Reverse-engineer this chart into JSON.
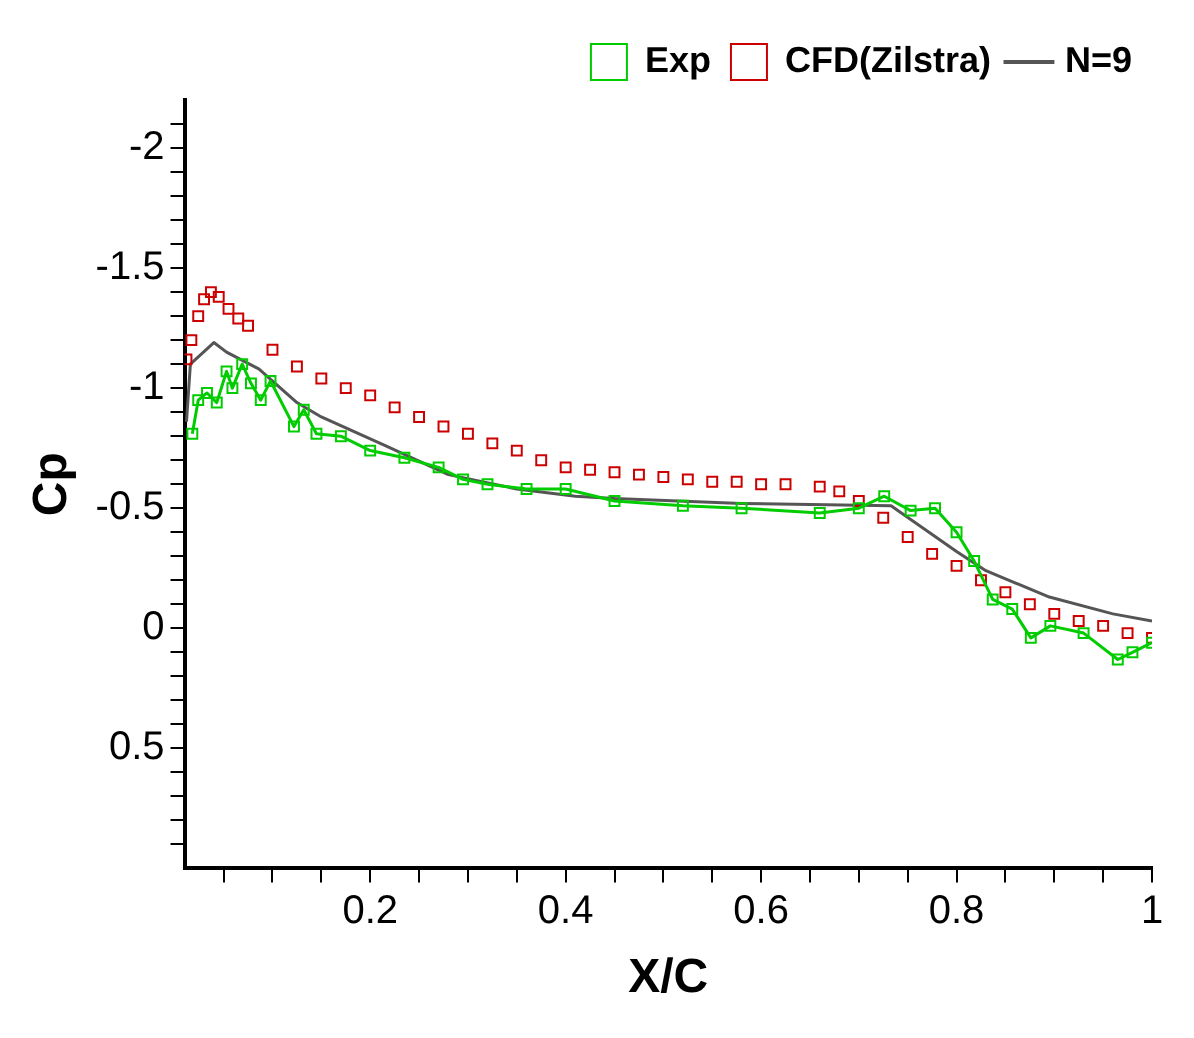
{
  "chart_data": {
    "type": "line",
    "xlabel": "X/C",
    "ylabel": "Cp",
    "xlim": [
      0.01,
      1
    ],
    "xticks": [
      {
        "value": 0.05,
        "label": null
      },
      {
        "value": 0.1,
        "label": null
      },
      {
        "value": 0.15,
        "label": null
      },
      0.2,
      {
        "value": 0.25,
        "label": null
      },
      {
        "value": 0.3,
        "label": null
      },
      {
        "value": 0.35,
        "label": null
      },
      0.4,
      {
        "value": 0.45,
        "label": null
      },
      {
        "value": 0.5,
        "label": null
      },
      {
        "value": 0.55,
        "label": null
      },
      0.6,
      {
        "value": 0.65,
        "label": null
      },
      {
        "value": 0.7,
        "label": null
      },
      {
        "value": 0.75,
        "label": null
      },
      0.8,
      {
        "value": 0.85,
        "label": null
      },
      {
        "value": 0.9,
        "label": null
      },
      {
        "value": 0.95,
        "label": null
      },
      1
    ],
    "ylim": [
      1,
      -2.2
    ],
    "yticks": [
      {
        "value": 0.9,
        "label": null
      },
      {
        "value": 0.8,
        "label": null
      },
      {
        "value": 0.7,
        "label": null
      },
      {
        "value": 0.6,
        "label": null
      },
      0.5,
      {
        "value": 0.4,
        "label": null
      },
      {
        "value": 0.3,
        "label": null
      },
      {
        "value": 0.2,
        "label": null
      },
      {
        "value": 0.1,
        "label": null
      },
      0,
      {
        "value": -0.1,
        "label": null
      },
      {
        "value": -0.2,
        "label": null
      },
      {
        "value": -0.3,
        "label": null
      },
      {
        "value": -0.4,
        "label": null
      },
      -0.5,
      {
        "value": -0.6,
        "label": null
      },
      {
        "value": -0.7,
        "label": null
      },
      {
        "value": -0.8,
        "label": null
      },
      {
        "value": -0.9,
        "label": null
      },
      -1,
      {
        "value": -1.1,
        "label": null
      },
      {
        "value": -1.2,
        "label": null
      },
      {
        "value": -1.3,
        "label": null
      },
      {
        "value": -1.4,
        "label": null
      },
      -1.5,
      {
        "value": -1.6,
        "label": null
      },
      {
        "value": -1.7,
        "label": null
      },
      {
        "value": -1.8,
        "label": null
      },
      {
        "value": -1.9,
        "label": null
      },
      -2,
      {
        "value": -2.1,
        "label": null
      }
    ],
    "grid": false,
    "legend": "top right",
    "series": [
      {
        "name": "Exp",
        "type": "line",
        "color": "#00cc00",
        "marker": "square",
        "line_style": "solid",
        "x": [
          0.018,
          0.024,
          0.033,
          0.043,
          0.053,
          0.059,
          0.069,
          0.078,
          0.088,
          0.098,
          0.122,
          0.132,
          0.145,
          0.17,
          0.2,
          0.235,
          0.27,
          0.295,
          0.32,
          0.36,
          0.4,
          0.45,
          0.52,
          0.58,
          0.66,
          0.7,
          0.726,
          0.753,
          0.778,
          0.8,
          0.818,
          0.837,
          0.857,
          0.876,
          0.896,
          0.93,
          0.965,
          0.98,
          1.0
        ],
        "values": [
          -0.81,
          -0.95,
          -0.98,
          -0.94,
          -1.07,
          -1.0,
          -1.1,
          -1.02,
          -0.95,
          -1.03,
          -0.84,
          -0.91,
          -0.81,
          -0.8,
          -0.74,
          -0.71,
          -0.67,
          -0.62,
          -0.6,
          -0.58,
          -0.58,
          -0.53,
          -0.51,
          -0.5,
          -0.48,
          -0.5,
          -0.55,
          -0.49,
          -0.5,
          -0.4,
          -0.28,
          -0.12,
          -0.08,
          0.04,
          -0.01,
          0.02,
          0.13,
          0.1,
          0.06
        ]
      },
      {
        "name": "CFD(Zilstra)",
        "type": "scatter",
        "color": "#cc0000",
        "marker": "square",
        "x": [
          0.012,
          0.017,
          0.024,
          0.03,
          0.037,
          0.045,
          0.055,
          0.065,
          0.075,
          0.1,
          0.125,
          0.15,
          0.175,
          0.2,
          0.225,
          0.25,
          0.275,
          0.3,
          0.325,
          0.35,
          0.375,
          0.4,
          0.425,
          0.45,
          0.475,
          0.5,
          0.525,
          0.55,
          0.575,
          0.6,
          0.625,
          0.66,
          0.68,
          0.7,
          0.725,
          0.75,
          0.775,
          0.8,
          0.825,
          0.85,
          0.875,
          0.9,
          0.925,
          0.95,
          0.975,
          1.0
        ],
        "values": [
          -1.12,
          -1.2,
          -1.3,
          -1.37,
          -1.4,
          -1.38,
          -1.33,
          -1.29,
          -1.26,
          -1.16,
          -1.09,
          -1.04,
          -1.0,
          -0.97,
          -0.92,
          -0.88,
          -0.84,
          -0.81,
          -0.77,
          -0.74,
          -0.7,
          -0.67,
          -0.66,
          -0.65,
          -0.64,
          -0.63,
          -0.62,
          -0.61,
          -0.61,
          -0.6,
          -0.6,
          -0.59,
          -0.57,
          -0.53,
          -0.46,
          -0.38,
          -0.31,
          -0.26,
          -0.2,
          -0.15,
          -0.1,
          -0.06,
          -0.03,
          -0.01,
          0.02,
          0.04
        ]
      },
      {
        "name": "N=9",
        "type": "line",
        "color": "#555555",
        "marker": "none",
        "line_style": "solid",
        "x": [
          0.012,
          0.016,
          0.04,
          0.053,
          0.086,
          0.125,
          0.15,
          0.216,
          0.28,
          0.35,
          0.41,
          0.45,
          0.58,
          0.733,
          0.8,
          0.83,
          0.895,
          0.96,
          1.0
        ],
        "values": [
          -0.86,
          -1.1,
          -1.19,
          -1.15,
          -1.08,
          -0.94,
          -0.88,
          -0.76,
          -0.64,
          -0.58,
          -0.55,
          -0.54,
          -0.52,
          -0.51,
          -0.32,
          -0.24,
          -0.13,
          -0.06,
          -0.03
        ]
      }
    ]
  }
}
